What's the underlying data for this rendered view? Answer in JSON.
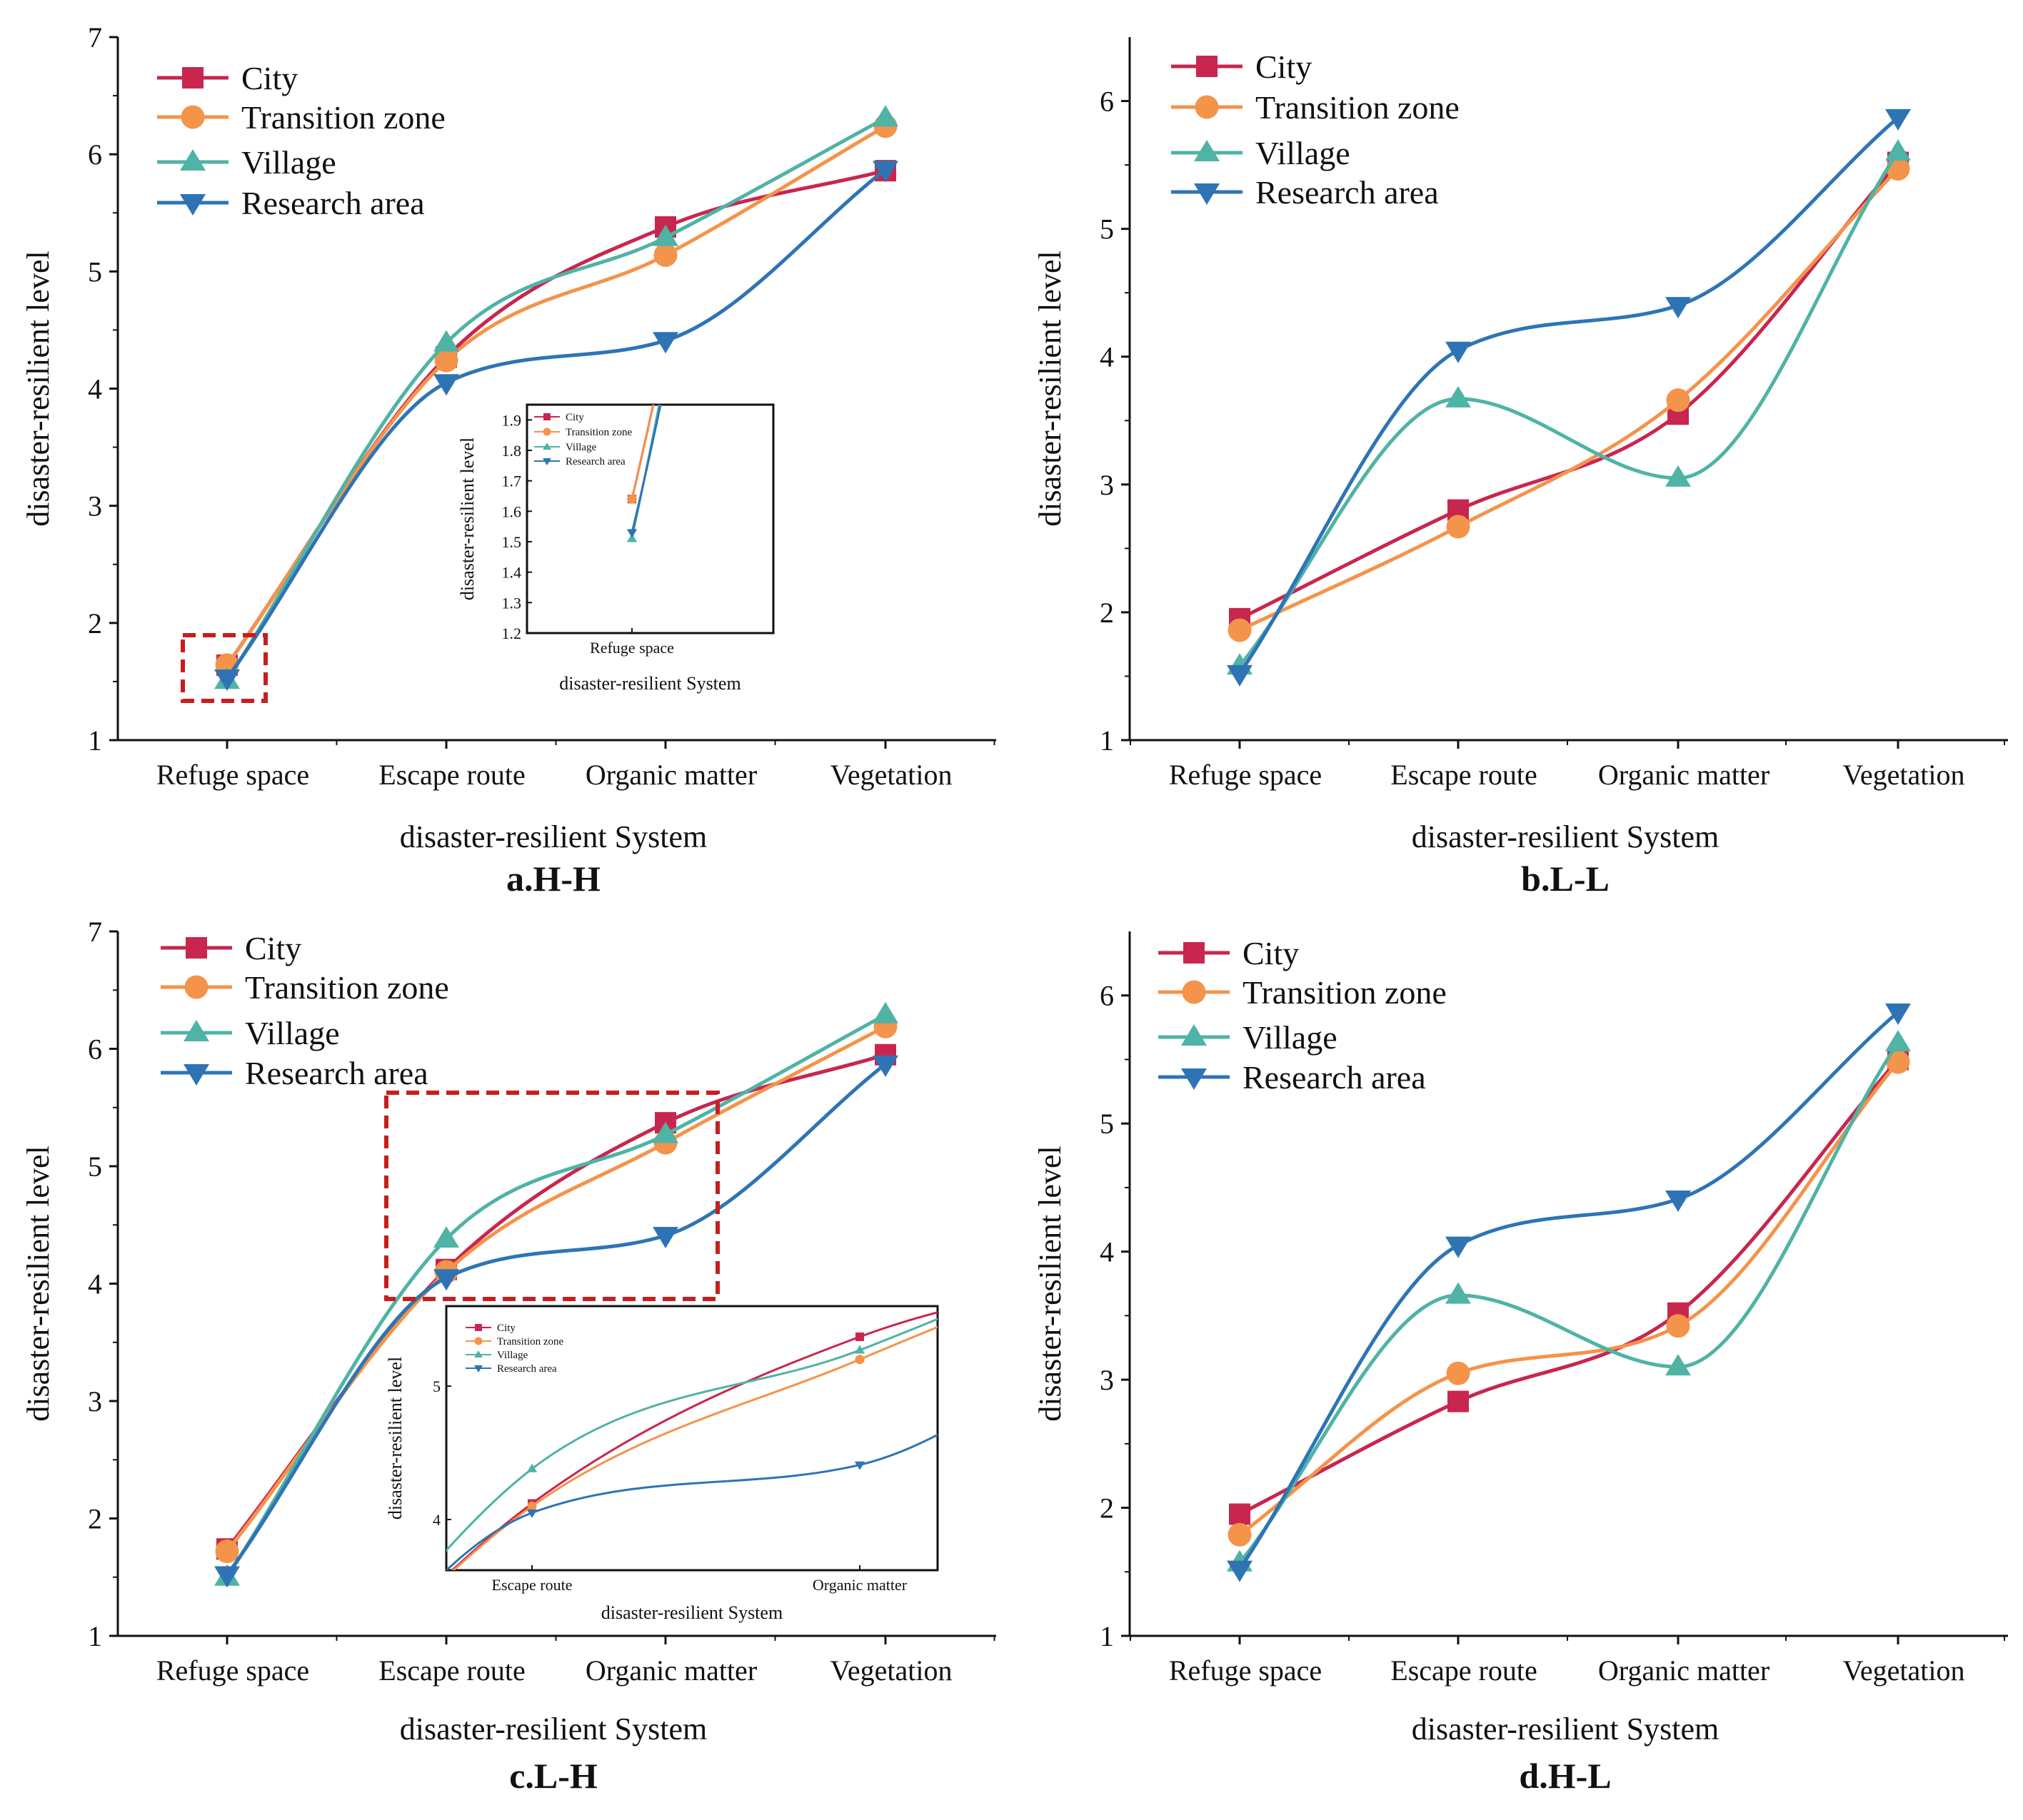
{
  "colors": {
    "City": "#c8264e",
    "Transition zone": "#f4934a",
    "Village": "#4fb3a5",
    "Research area": "#2e74b5",
    "highlight": "#c81e1e"
  },
  "chart_data": [
    {
      "type": "line",
      "caption": "a.H-H",
      "xlabel": "disaster-resilient System",
      "ylabel": "disaster-resilient level",
      "categories": [
        "Refuge space",
        "Escape route",
        "Organic matter",
        "Vegetation"
      ],
      "ylim": [
        1,
        7
      ],
      "yticks": [
        1,
        2,
        3,
        4,
        5,
        6,
        7
      ],
      "legend_position": "top-left",
      "series": [
        {
          "name": "City",
          "marker": "square",
          "values": [
            1.64,
            4.27,
            5.38,
            5.86
          ]
        },
        {
          "name": "Transition zone",
          "marker": "circle",
          "values": [
            1.64,
            4.24,
            5.14,
            6.24
          ]
        },
        {
          "name": "Village",
          "marker": "triangle-up",
          "values": [
            1.51,
            4.39,
            5.29,
            6.31
          ]
        },
        {
          "name": "Research area",
          "marker": "triangle-down",
          "values": [
            1.53,
            4.05,
            4.41,
            5.87
          ]
        }
      ],
      "inset": {
        "xlabel": "disaster-resilient System",
        "ylabel": "disaster-resilient level",
        "categories": [
          "Refuge space"
        ],
        "ylim": [
          1.2,
          1.95
        ],
        "yticks": [
          1.2,
          1.3,
          1.4,
          1.5,
          1.6,
          1.7,
          1.8,
          1.9
        ]
      }
    },
    {
      "type": "line",
      "caption": "b.L-L",
      "xlabel": "disaster-resilient System",
      "ylabel": "disaster-resilient level",
      "categories": [
        "Refuge space",
        "Escape route",
        "Organic matter",
        "Vegetation"
      ],
      "ylim": [
        1,
        6.5
      ],
      "yticks": [
        1,
        2,
        3,
        4,
        5,
        6
      ],
      "legend_position": "top-left",
      "series": [
        {
          "name": "City",
          "marker": "square",
          "values": [
            1.95,
            2.8,
            3.55,
            5.52
          ]
        },
        {
          "name": "Transition zone",
          "marker": "circle",
          "values": [
            1.86,
            2.67,
            3.66,
            5.47
          ]
        },
        {
          "name": "Village",
          "marker": "triangle-up",
          "values": [
            1.58,
            3.67,
            3.05,
            5.6
          ]
        },
        {
          "name": "Research area",
          "marker": "triangle-down",
          "values": [
            1.52,
            4.05,
            4.4,
            5.87
          ]
        }
      ]
    },
    {
      "type": "line",
      "caption": "c.L-H",
      "xlabel": "disaster-resilient System",
      "ylabel": "disaster-resilient level",
      "categories": [
        "Refuge space",
        "Escape route",
        "Organic matter",
        "Vegetation"
      ],
      "ylim": [
        1,
        7
      ],
      "yticks": [
        1,
        2,
        3,
        4,
        5,
        6,
        7
      ],
      "legend_position": "top-left",
      "series": [
        {
          "name": "City",
          "marker": "square",
          "values": [
            1.74,
            4.12,
            5.37,
            5.95
          ]
        },
        {
          "name": "Transition zone",
          "marker": "circle",
          "values": [
            1.72,
            4.1,
            5.2,
            6.19
          ]
        },
        {
          "name": "Village",
          "marker": "triangle-up",
          "values": [
            1.5,
            4.38,
            5.27,
            6.29
          ]
        },
        {
          "name": "Research area",
          "marker": "triangle-down",
          "values": [
            1.52,
            4.05,
            4.41,
            5.87
          ]
        }
      ],
      "inset": {
        "xlabel": "disaster-resilient System",
        "ylabel": "disaster-resilient level",
        "categories": [
          "Escape route",
          "Organic matter"
        ],
        "ylim": [
          3.62,
          5.6
        ],
        "yticks": [
          4,
          5
        ]
      }
    },
    {
      "type": "line",
      "caption": "d.H-L",
      "xlabel": "disaster-resilient System",
      "ylabel": "disaster-resilient level",
      "categories": [
        "Refuge space",
        "Escape route",
        "Organic matter",
        "Vegetation"
      ],
      "ylim": [
        1,
        6.5
      ],
      "yticks": [
        1,
        2,
        3,
        4,
        5,
        6
      ],
      "legend_position": "top-left",
      "series": [
        {
          "name": "City",
          "marker": "square",
          "values": [
            1.95,
            2.83,
            3.52,
            5.5
          ]
        },
        {
          "name": "Transition zone",
          "marker": "circle",
          "values": [
            1.79,
            3.05,
            3.42,
            5.48
          ]
        },
        {
          "name": "Village",
          "marker": "triangle-up",
          "values": [
            1.57,
            3.66,
            3.1,
            5.63
          ]
        },
        {
          "name": "Research area",
          "marker": "triangle-down",
          "values": [
            1.52,
            4.05,
            4.41,
            5.87
          ]
        }
      ]
    }
  ]
}
